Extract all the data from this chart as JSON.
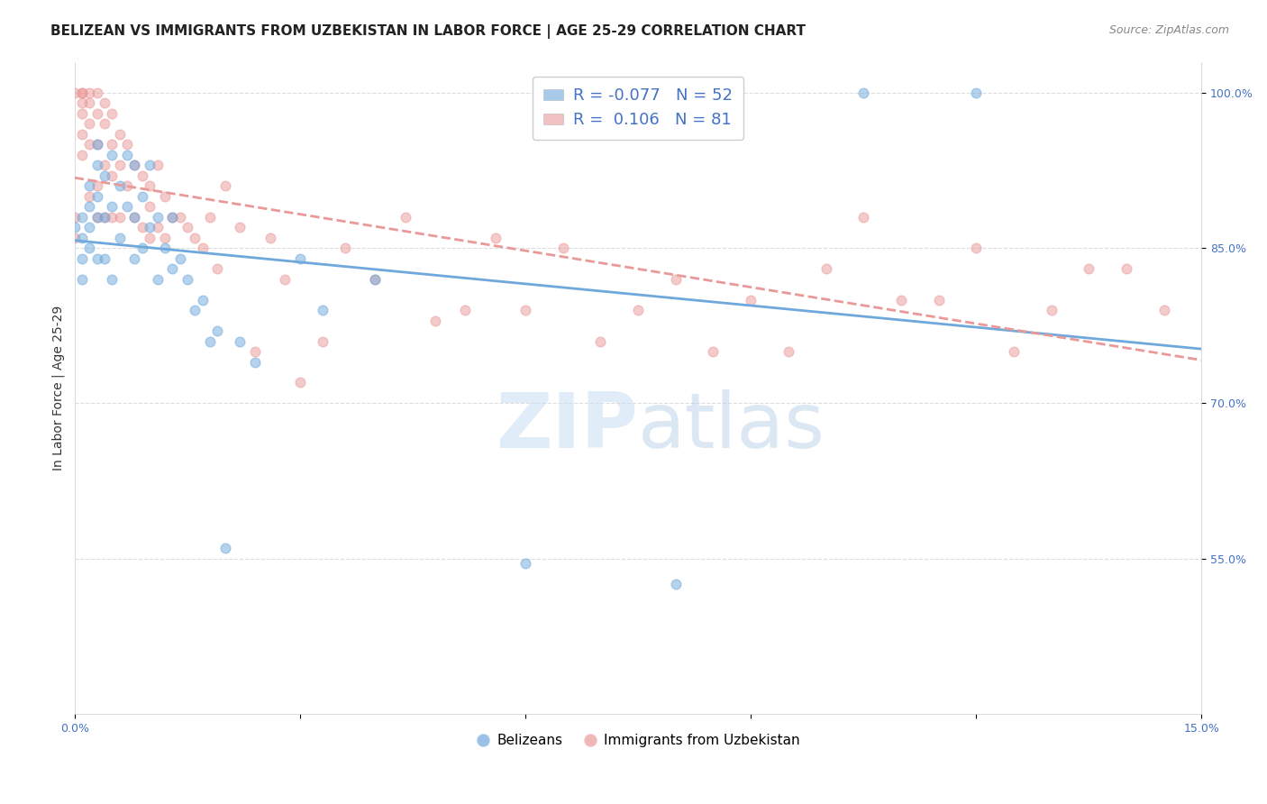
{
  "title": "BELIZEAN VS IMMIGRANTS FROM UZBEKISTAN IN LABOR FORCE | AGE 25-29 CORRELATION CHART",
  "source": "Source: ZipAtlas.com",
  "ylabel": "In Labor Force | Age 25-29",
  "xlim": [
    0.0,
    0.15
  ],
  "ylim": [
    0.4,
    1.03
  ],
  "xticks": [
    0.0,
    0.03,
    0.06,
    0.09,
    0.12,
    0.15
  ],
  "xticklabels": [
    "0.0%",
    "",
    "",
    "",
    "",
    "15.0%"
  ],
  "yticks": [
    0.55,
    0.7,
    0.85,
    1.0
  ],
  "yticklabels": [
    "55.0%",
    "70.0%",
    "85.0%",
    "100.0%"
  ],
  "belizean_color": "#6fa8dc",
  "uzbek_color": "#ea9999",
  "belizean_R": -0.077,
  "belizean_N": 52,
  "uzbek_R": 0.106,
  "uzbek_N": 81,
  "legend_labels": [
    "Belizeans",
    "Immigrants from Uzbekistan"
  ],
  "watermark_zip": "ZIP",
  "watermark_atlas": "atlas",
  "belizean_x": [
    0.0,
    0.001,
    0.001,
    0.001,
    0.001,
    0.002,
    0.002,
    0.002,
    0.002,
    0.003,
    0.003,
    0.003,
    0.003,
    0.003,
    0.004,
    0.004,
    0.004,
    0.005,
    0.005,
    0.005,
    0.006,
    0.006,
    0.007,
    0.007,
    0.008,
    0.008,
    0.008,
    0.009,
    0.009,
    0.01,
    0.01,
    0.011,
    0.011,
    0.012,
    0.013,
    0.013,
    0.014,
    0.015,
    0.016,
    0.017,
    0.018,
    0.019,
    0.02,
    0.022,
    0.024,
    0.03,
    0.033,
    0.04,
    0.06,
    0.08,
    0.105,
    0.12
  ],
  "belizean_y": [
    0.87,
    0.88,
    0.86,
    0.84,
    0.82,
    0.91,
    0.89,
    0.87,
    0.85,
    0.95,
    0.93,
    0.9,
    0.88,
    0.84,
    0.92,
    0.88,
    0.84,
    0.94,
    0.89,
    0.82,
    0.91,
    0.86,
    0.94,
    0.89,
    0.93,
    0.88,
    0.84,
    0.9,
    0.85,
    0.93,
    0.87,
    0.88,
    0.82,
    0.85,
    0.88,
    0.83,
    0.84,
    0.82,
    0.79,
    0.8,
    0.76,
    0.77,
    0.56,
    0.76,
    0.74,
    0.84,
    0.79,
    0.82,
    0.545,
    0.525,
    1.0,
    1.0
  ],
  "uzbek_x": [
    0.0,
    0.0,
    0.0,
    0.001,
    0.001,
    0.001,
    0.001,
    0.001,
    0.001,
    0.002,
    0.002,
    0.002,
    0.002,
    0.002,
    0.003,
    0.003,
    0.003,
    0.003,
    0.003,
    0.004,
    0.004,
    0.004,
    0.004,
    0.005,
    0.005,
    0.005,
    0.005,
    0.006,
    0.006,
    0.006,
    0.007,
    0.007,
    0.008,
    0.008,
    0.009,
    0.009,
    0.01,
    0.01,
    0.01,
    0.011,
    0.011,
    0.012,
    0.012,
    0.013,
    0.014,
    0.015,
    0.016,
    0.017,
    0.018,
    0.019,
    0.02,
    0.022,
    0.024,
    0.026,
    0.028,
    0.03,
    0.033,
    0.036,
    0.04,
    0.044,
    0.048,
    0.052,
    0.056,
    0.06,
    0.065,
    0.07,
    0.075,
    0.08,
    0.085,
    0.09,
    0.095,
    0.1,
    0.105,
    0.11,
    0.115,
    0.12,
    0.125,
    0.13,
    0.135,
    0.14,
    0.145
  ],
  "uzbek_y": [
    0.88,
    0.86,
    1.0,
    1.0,
    1.0,
    0.99,
    0.98,
    0.96,
    0.94,
    1.0,
    0.99,
    0.97,
    0.95,
    0.9,
    1.0,
    0.98,
    0.95,
    0.91,
    0.88,
    0.99,
    0.97,
    0.93,
    0.88,
    0.98,
    0.95,
    0.92,
    0.88,
    0.96,
    0.93,
    0.88,
    0.95,
    0.91,
    0.93,
    0.88,
    0.92,
    0.87,
    0.91,
    0.89,
    0.86,
    0.93,
    0.87,
    0.9,
    0.86,
    0.88,
    0.88,
    0.87,
    0.86,
    0.85,
    0.88,
    0.83,
    0.91,
    0.87,
    0.75,
    0.86,
    0.82,
    0.72,
    0.76,
    0.85,
    0.82,
    0.88,
    0.78,
    0.79,
    0.86,
    0.79,
    0.85,
    0.76,
    0.79,
    0.82,
    0.75,
    0.8,
    0.75,
    0.83,
    0.88,
    0.8,
    0.8,
    0.85,
    0.75,
    0.79,
    0.83,
    0.83,
    0.79
  ],
  "background_color": "#ffffff",
  "grid_color": "#dddddd",
  "title_fontsize": 11,
  "axis_label_fontsize": 10,
  "tick_fontsize": 9,
  "scatter_size": 60,
  "scatter_alpha": 0.5,
  "scatter_linewidth": 1.0
}
